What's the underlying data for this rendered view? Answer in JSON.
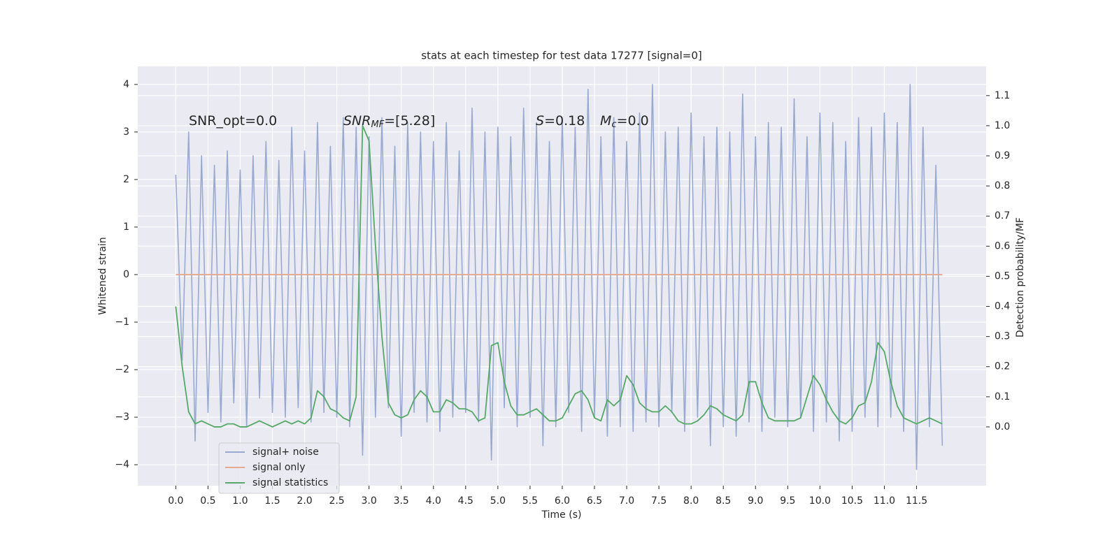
{
  "chart_data": {
    "type": "line",
    "title": "stats at each timestep for test data 17277 [signal=0]",
    "xlabel": "Time (s)",
    "ylabel": "Whitened strain",
    "y2label": "Detection probability/MF",
    "annotations": [
      {
        "parts": [
          {
            "text": "SNR_opt=0.0"
          }
        ]
      },
      {
        "parts": [
          {
            "text": "SNR",
            "italic": true
          },
          {
            "text": "MF",
            "italic": true,
            "sub": true
          },
          {
            "text": "=[5.28]"
          }
        ]
      },
      {
        "parts": [
          {
            "text": "S",
            "italic": true
          },
          {
            "text": "=0.18"
          }
        ]
      },
      {
        "parts": [
          {
            "text": "M",
            "italic": true
          },
          {
            "text": "c",
            "italic": true,
            "sub": true
          },
          {
            "text": "=0.0"
          }
        ]
      }
    ],
    "grid": true,
    "legend": "lower left",
    "xlim": [
      -0.59,
      12.58
    ],
    "ylim": [
      -4.44,
      4.38
    ],
    "y2lim": [
      -0.195,
      1.197
    ],
    "xticks": [
      {
        "value": 0,
        "label": "0.0"
      },
      {
        "value": 0.5,
        "label": "0.5"
      },
      {
        "value": 1,
        "label": "1.0"
      },
      {
        "value": 1.5,
        "label": "1.5"
      },
      {
        "value": 2,
        "label": "2.0"
      },
      {
        "value": 2.5,
        "label": "2.5"
      },
      {
        "value": 3,
        "label": "3.0"
      },
      {
        "value": 3.5,
        "label": "3.5"
      },
      {
        "value": 4,
        "label": "4.0"
      },
      {
        "value": 4.5,
        "label": "4.5"
      },
      {
        "value": 5,
        "label": "5.0"
      },
      {
        "value": 5.5,
        "label": "5.5"
      },
      {
        "value": 6,
        "label": "6.0"
      },
      {
        "value": 6.5,
        "label": "6.5"
      },
      {
        "value": 7,
        "label": "7.0"
      },
      {
        "value": 7.5,
        "label": "7.5"
      },
      {
        "value": 8,
        "label": "8.0"
      },
      {
        "value": 8.5,
        "label": "8.5"
      },
      {
        "value": 9,
        "label": "9.0"
      },
      {
        "value": 9.5,
        "label": "9.5"
      },
      {
        "value": 10,
        "label": "10.0"
      },
      {
        "value": 10.5,
        "label": "10.5"
      },
      {
        "value": 11,
        "label": "11.0"
      },
      {
        "value": 11.5,
        "label": "11.5"
      }
    ],
    "yticks": [
      {
        "value": -4,
        "label": "−4"
      },
      {
        "value": -3,
        "label": "−3"
      },
      {
        "value": -2,
        "label": "−2"
      },
      {
        "value": -1,
        "label": "−1"
      },
      0,
      1,
      2,
      3,
      4
    ],
    "y2ticks": [
      {
        "value": 0,
        "label": "0.0"
      },
      0.1,
      0.2,
      0.3,
      0.4,
      0.5,
      0.6,
      0.7,
      0.8,
      0.9,
      {
        "value": 1,
        "label": "1.0"
      },
      1.1
    ],
    "x": [
      0.0,
      0.1,
      0.2,
      0.3,
      0.4,
      0.5,
      0.6,
      0.7,
      0.8,
      0.9,
      1.0,
      1.1,
      1.2,
      1.3,
      1.4,
      1.5,
      1.6,
      1.7,
      1.8,
      1.9,
      2.0,
      2.1,
      2.2,
      2.3,
      2.4,
      2.5,
      2.6,
      2.7,
      2.8,
      2.9,
      3.0,
      3.1,
      3.2,
      3.3,
      3.4,
      3.5,
      3.6,
      3.7,
      3.8,
      3.9,
      4.0,
      4.1,
      4.2,
      4.3,
      4.4,
      4.5,
      4.6,
      4.7,
      4.8,
      4.9,
      5.0,
      5.1,
      5.2,
      5.3,
      5.4,
      5.5,
      5.6,
      5.7,
      5.8,
      5.9,
      6.0,
      6.1,
      6.2,
      6.3,
      6.4,
      6.5,
      6.6,
      6.7,
      6.8,
      6.9,
      7.0,
      7.1,
      7.2,
      7.3,
      7.4,
      7.5,
      7.6,
      7.7,
      7.8,
      7.9,
      8.0,
      8.1,
      8.2,
      8.3,
      8.4,
      8.5,
      8.6,
      8.7,
      8.8,
      8.9,
      9.0,
      9.1,
      9.2,
      9.3,
      9.4,
      9.5,
      9.6,
      9.7,
      9.8,
      9.9,
      10.0,
      10.1,
      10.2,
      10.3,
      10.4,
      10.5,
      10.6,
      10.7,
      10.8,
      10.9,
      11.0,
      11.1,
      11.2,
      11.3,
      11.4,
      11.5,
      11.6,
      11.7,
      11.8,
      11.9
    ],
    "series": [
      {
        "name": "signal+ noise",
        "color": "#98aad0",
        "values": [
          2.1,
          -1.8,
          3.0,
          -3.5,
          2.5,
          -2.9,
          2.3,
          -3.1,
          2.6,
          -2.7,
          2.2,
          -3.2,
          2.5,
          -2.6,
          2.8,
          -2.9,
          2.4,
          -3.0,
          3.1,
          -2.8,
          2.6,
          -3.1,
          3.2,
          -2.9,
          2.7,
          -3.0,
          3.3,
          -3.2,
          3.1,
          -3.8,
          2.9,
          -3.0,
          3.3,
          -2.8,
          2.7,
          -3.4,
          3.2,
          -2.9,
          3.0,
          -3.1,
          2.8,
          -3.3,
          3.2,
          -3.0,
          2.6,
          -2.9,
          3.5,
          -3.1,
          3.0,
          -3.9,
          3.1,
          -2.8,
          2.9,
          -3.2,
          3.5,
          -3.0,
          3.2,
          -3.6,
          2.8,
          -3.2,
          3.3,
          -2.9,
          3.1,
          -3.3,
          3.9,
          -3.0,
          2.9,
          -3.4,
          3.3,
          -3.2,
          2.8,
          -3.3,
          3.4,
          -3.1,
          4.0,
          -3.2,
          3.0,
          -2.9,
          3.1,
          -3.3,
          3.4,
          -3.0,
          2.9,
          -3.6,
          3.1,
          -3.2,
          3.0,
          -3.4,
          3.8,
          -3.1,
          2.9,
          -3.3,
          3.2,
          -3.0,
          3.1,
          -3.2,
          3.7,
          -3.0,
          2.9,
          -3.3,
          3.4,
          -3.1,
          3.2,
          -3.5,
          2.8,
          -3.3,
          3.3,
          -3.0,
          3.1,
          -3.2,
          3.4,
          -3.0,
          3.2,
          -3.3,
          4.0,
          -4.1,
          3.1,
          -3.2,
          2.3,
          -3.6
        ]
      },
      {
        "name": "signal only",
        "color": "#e8a98d",
        "values": [
          0,
          0,
          0,
          0,
          0,
          0,
          0,
          0,
          0,
          0,
          0,
          0,
          0,
          0,
          0,
          0,
          0,
          0,
          0,
          0,
          0,
          0,
          0,
          0,
          0,
          0,
          0,
          0,
          0,
          0,
          0,
          0,
          0,
          0,
          0,
          0,
          0,
          0,
          0,
          0,
          0,
          0,
          0,
          0,
          0,
          0,
          0,
          0,
          0,
          0,
          0,
          0,
          0,
          0,
          0,
          0,
          0,
          0,
          0,
          0,
          0,
          0,
          0,
          0,
          0,
          0,
          0,
          0,
          0,
          0,
          0,
          0,
          0,
          0,
          0,
          0,
          0,
          0,
          0,
          0,
          0,
          0,
          0,
          0,
          0,
          0,
          0,
          0,
          0,
          0,
          0,
          0,
          0,
          0,
          0,
          0,
          0,
          0,
          0,
          0,
          0,
          0,
          0,
          0,
          0,
          0,
          0,
          0,
          0,
          0,
          0,
          0,
          0,
          0,
          0,
          0,
          0,
          0,
          0,
          0
        ]
      },
      {
        "name": "signal statistics",
        "color": "#55a868",
        "axis": "y2",
        "values": [
          0.4,
          0.2,
          0.05,
          0.01,
          0.02,
          0.01,
          0.0,
          0.0,
          0.01,
          0.01,
          0.0,
          0.0,
          0.01,
          0.02,
          0.01,
          0.0,
          0.01,
          0.02,
          0.01,
          0.02,
          0.01,
          0.03,
          0.12,
          0.1,
          0.06,
          0.05,
          0.03,
          0.02,
          0.1,
          1.0,
          0.95,
          0.6,
          0.3,
          0.08,
          0.04,
          0.03,
          0.04,
          0.09,
          0.12,
          0.1,
          0.05,
          0.05,
          0.09,
          0.08,
          0.06,
          0.06,
          0.05,
          0.02,
          0.03,
          0.27,
          0.28,
          0.15,
          0.07,
          0.04,
          0.04,
          0.05,
          0.06,
          0.04,
          0.02,
          0.02,
          0.03,
          0.07,
          0.11,
          0.12,
          0.09,
          0.03,
          0.02,
          0.09,
          0.07,
          0.09,
          0.17,
          0.14,
          0.08,
          0.06,
          0.05,
          0.05,
          0.07,
          0.05,
          0.02,
          0.01,
          0.01,
          0.02,
          0.04,
          0.07,
          0.06,
          0.04,
          0.03,
          0.02,
          0.04,
          0.15,
          0.15,
          0.08,
          0.03,
          0.02,
          0.02,
          0.02,
          0.02,
          0.03,
          0.1,
          0.17,
          0.14,
          0.09,
          0.05,
          0.02,
          0.01,
          0.03,
          0.07,
          0.08,
          0.15,
          0.28,
          0.25,
          0.15,
          0.07,
          0.03,
          0.02,
          0.01,
          0.02,
          0.03,
          0.02,
          0.01
        ]
      }
    ]
  }
}
